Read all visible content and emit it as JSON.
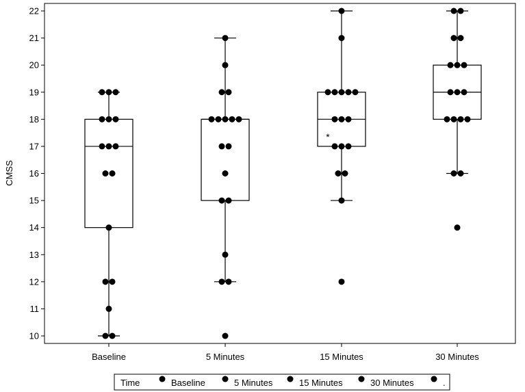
{
  "chart_data": {
    "type": "box",
    "ylabel": "CMSS",
    "ylim": [
      10,
      22
    ],
    "y_ticks": [
      10,
      11,
      12,
      13,
      14,
      15,
      16,
      17,
      18,
      19,
      20,
      21,
      22
    ],
    "categories": [
      "Baseline",
      "5 Minutes",
      "15 Minutes",
      "30 Minutes"
    ],
    "boxes": [
      {
        "q1": 14,
        "median": 17,
        "q3": 18,
        "whisker_low": 10,
        "whisker_high": 19,
        "mean": null
      },
      {
        "q1": 15,
        "median": 18,
        "q3": 18,
        "whisker_low": 12,
        "whisker_high": 21,
        "mean": null
      },
      {
        "q1": 17,
        "median": 18,
        "q3": 19,
        "whisker_low": 15,
        "whisker_high": 22,
        "mean": 17.4
      },
      {
        "q1": 18,
        "median": 19,
        "q3": 20,
        "whisker_low": 16,
        "whisker_high": 22,
        "mean": null
      }
    ],
    "points": [
      [
        19,
        19,
        19,
        18,
        18,
        18,
        17,
        17,
        17,
        16,
        16,
        14,
        12,
        12,
        11,
        10,
        10
      ],
      [
        21,
        20,
        19,
        19,
        18,
        18,
        18,
        18,
        18,
        17,
        17,
        16,
        15,
        15,
        13,
        12,
        12,
        10
      ],
      [
        22,
        21,
        19,
        19,
        19,
        19,
        19,
        18,
        18,
        18,
        17,
        17,
        17,
        16,
        16,
        15,
        12
      ],
      [
        22,
        22,
        21,
        21,
        20,
        20,
        20,
        19,
        19,
        19,
        18,
        18,
        18,
        18,
        16,
        16,
        14
      ]
    ],
    "legend": {
      "title": "Time",
      "entries": [
        "Baseline",
        "5 Minutes",
        "15 Minutes",
        "30 Minutes",
        "."
      ],
      "placement": "bottom-center"
    },
    "marker_color": "#000000",
    "mean_marker": "*"
  }
}
